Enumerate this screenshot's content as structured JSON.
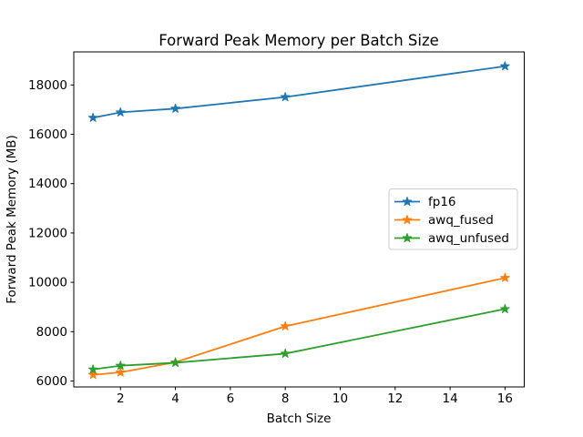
{
  "figure": {
    "background_color": "#ffffff",
    "frame_color": "#000000",
    "legend_border_color": "#cccccc"
  },
  "chart_data": {
    "type": "line",
    "title": "Forward Peak Memory per Batch Size",
    "xlabel": "Batch Size",
    "ylabel": "Forward Peak Memory (MB)",
    "x": [
      1,
      2,
      4,
      8,
      16
    ],
    "series": [
      {
        "name": "fp16",
        "color": "#1f77b4",
        "values": [
          16670,
          16890,
          17040,
          17510,
          18760
        ]
      },
      {
        "name": "awq_fused",
        "color": "#ff7f0e",
        "values": [
          6250,
          6350,
          6760,
          8220,
          10180
        ]
      },
      {
        "name": "awq_unfused",
        "color": "#2ca02c",
        "values": [
          6470,
          6620,
          6740,
          7110,
          8920
        ]
      }
    ],
    "xticks": [
      2,
      4,
      6,
      8,
      10,
      12,
      14,
      16
    ],
    "yticks": [
      6000,
      8000,
      10000,
      12000,
      14000,
      16000,
      18000
    ],
    "xlim": [
      0.3,
      16.7
    ],
    "ylim": [
      5760,
      19340
    ],
    "grid": false,
    "marker": "star",
    "legend": {
      "position": "center right",
      "entries": [
        "fp16",
        "awq_fused",
        "awq_unfused"
      ]
    }
  }
}
